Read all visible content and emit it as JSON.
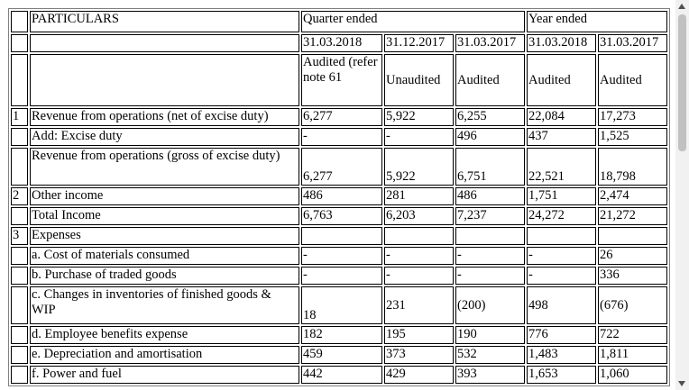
{
  "header": {
    "particulars": "PARTICULARS",
    "quarter_ended": "Quarter ended",
    "year_ended": "Year ended",
    "dates": [
      "31.03.2018",
      "31.12.2017",
      "31.03.2017",
      "31.03.2018",
      "31.03.2017"
    ],
    "status": [
      "Audited (refer note 61",
      "Unaudited",
      "Audited",
      "Audited",
      "Audited"
    ]
  },
  "rows": [
    {
      "num": "1",
      "label": "Revenue from operations (net of excise duty)",
      "values": [
        "6,277",
        "5,922",
        "6,255",
        "22,084",
        "17,273"
      ]
    },
    {
      "num": "",
      "label": "Add: Excise duty",
      "values": [
        "-",
        "-",
        "496",
        "437",
        "1,525"
      ]
    },
    {
      "num": "",
      "label": "Revenue from operations (gross of excise duty)",
      "values": [
        "6,277",
        "5,922",
        "6,751",
        "22,521",
        "18,798"
      ]
    },
    {
      "num": "2",
      "label": "Other income",
      "values": [
        "486",
        "281",
        "486",
        "1,751",
        "2,474"
      ]
    },
    {
      "num": "",
      "label": "Total Income",
      "values": [
        "6,763",
        "6,203",
        "7,237",
        "24,272",
        "21,272"
      ]
    },
    {
      "num": "3",
      "label": "Expenses",
      "values": [
        "",
        "",
        "",
        "",
        ""
      ]
    },
    {
      "num": "",
      "label": "a. Cost of materials consumed",
      "values": [
        "-",
        "-",
        "-",
        "-",
        "26"
      ]
    },
    {
      "num": "",
      "label": "b. Purchase of traded goods",
      "values": [
        "-",
        "-",
        "-",
        "-",
        "336"
      ]
    },
    {
      "num": "",
      "label": "c. Changes in inventories of finished goods & WIP",
      "values": [
        "18",
        "231",
        "(200)",
        "498",
        "(676)"
      ]
    },
    {
      "num": "",
      "label": "d. Employee benefits expense",
      "values": [
        "182",
        "195",
        "190",
        "776",
        "722"
      ]
    },
    {
      "num": "",
      "label": "e. Depreciation and amortisation",
      "values": [
        "459",
        "373",
        "532",
        "1,483",
        "1,811"
      ]
    },
    {
      "num": "",
      "label": "f. Power and fuel",
      "values": [
        "442",
        "429",
        "393",
        "1,653",
        "1,060"
      ]
    }
  ]
}
